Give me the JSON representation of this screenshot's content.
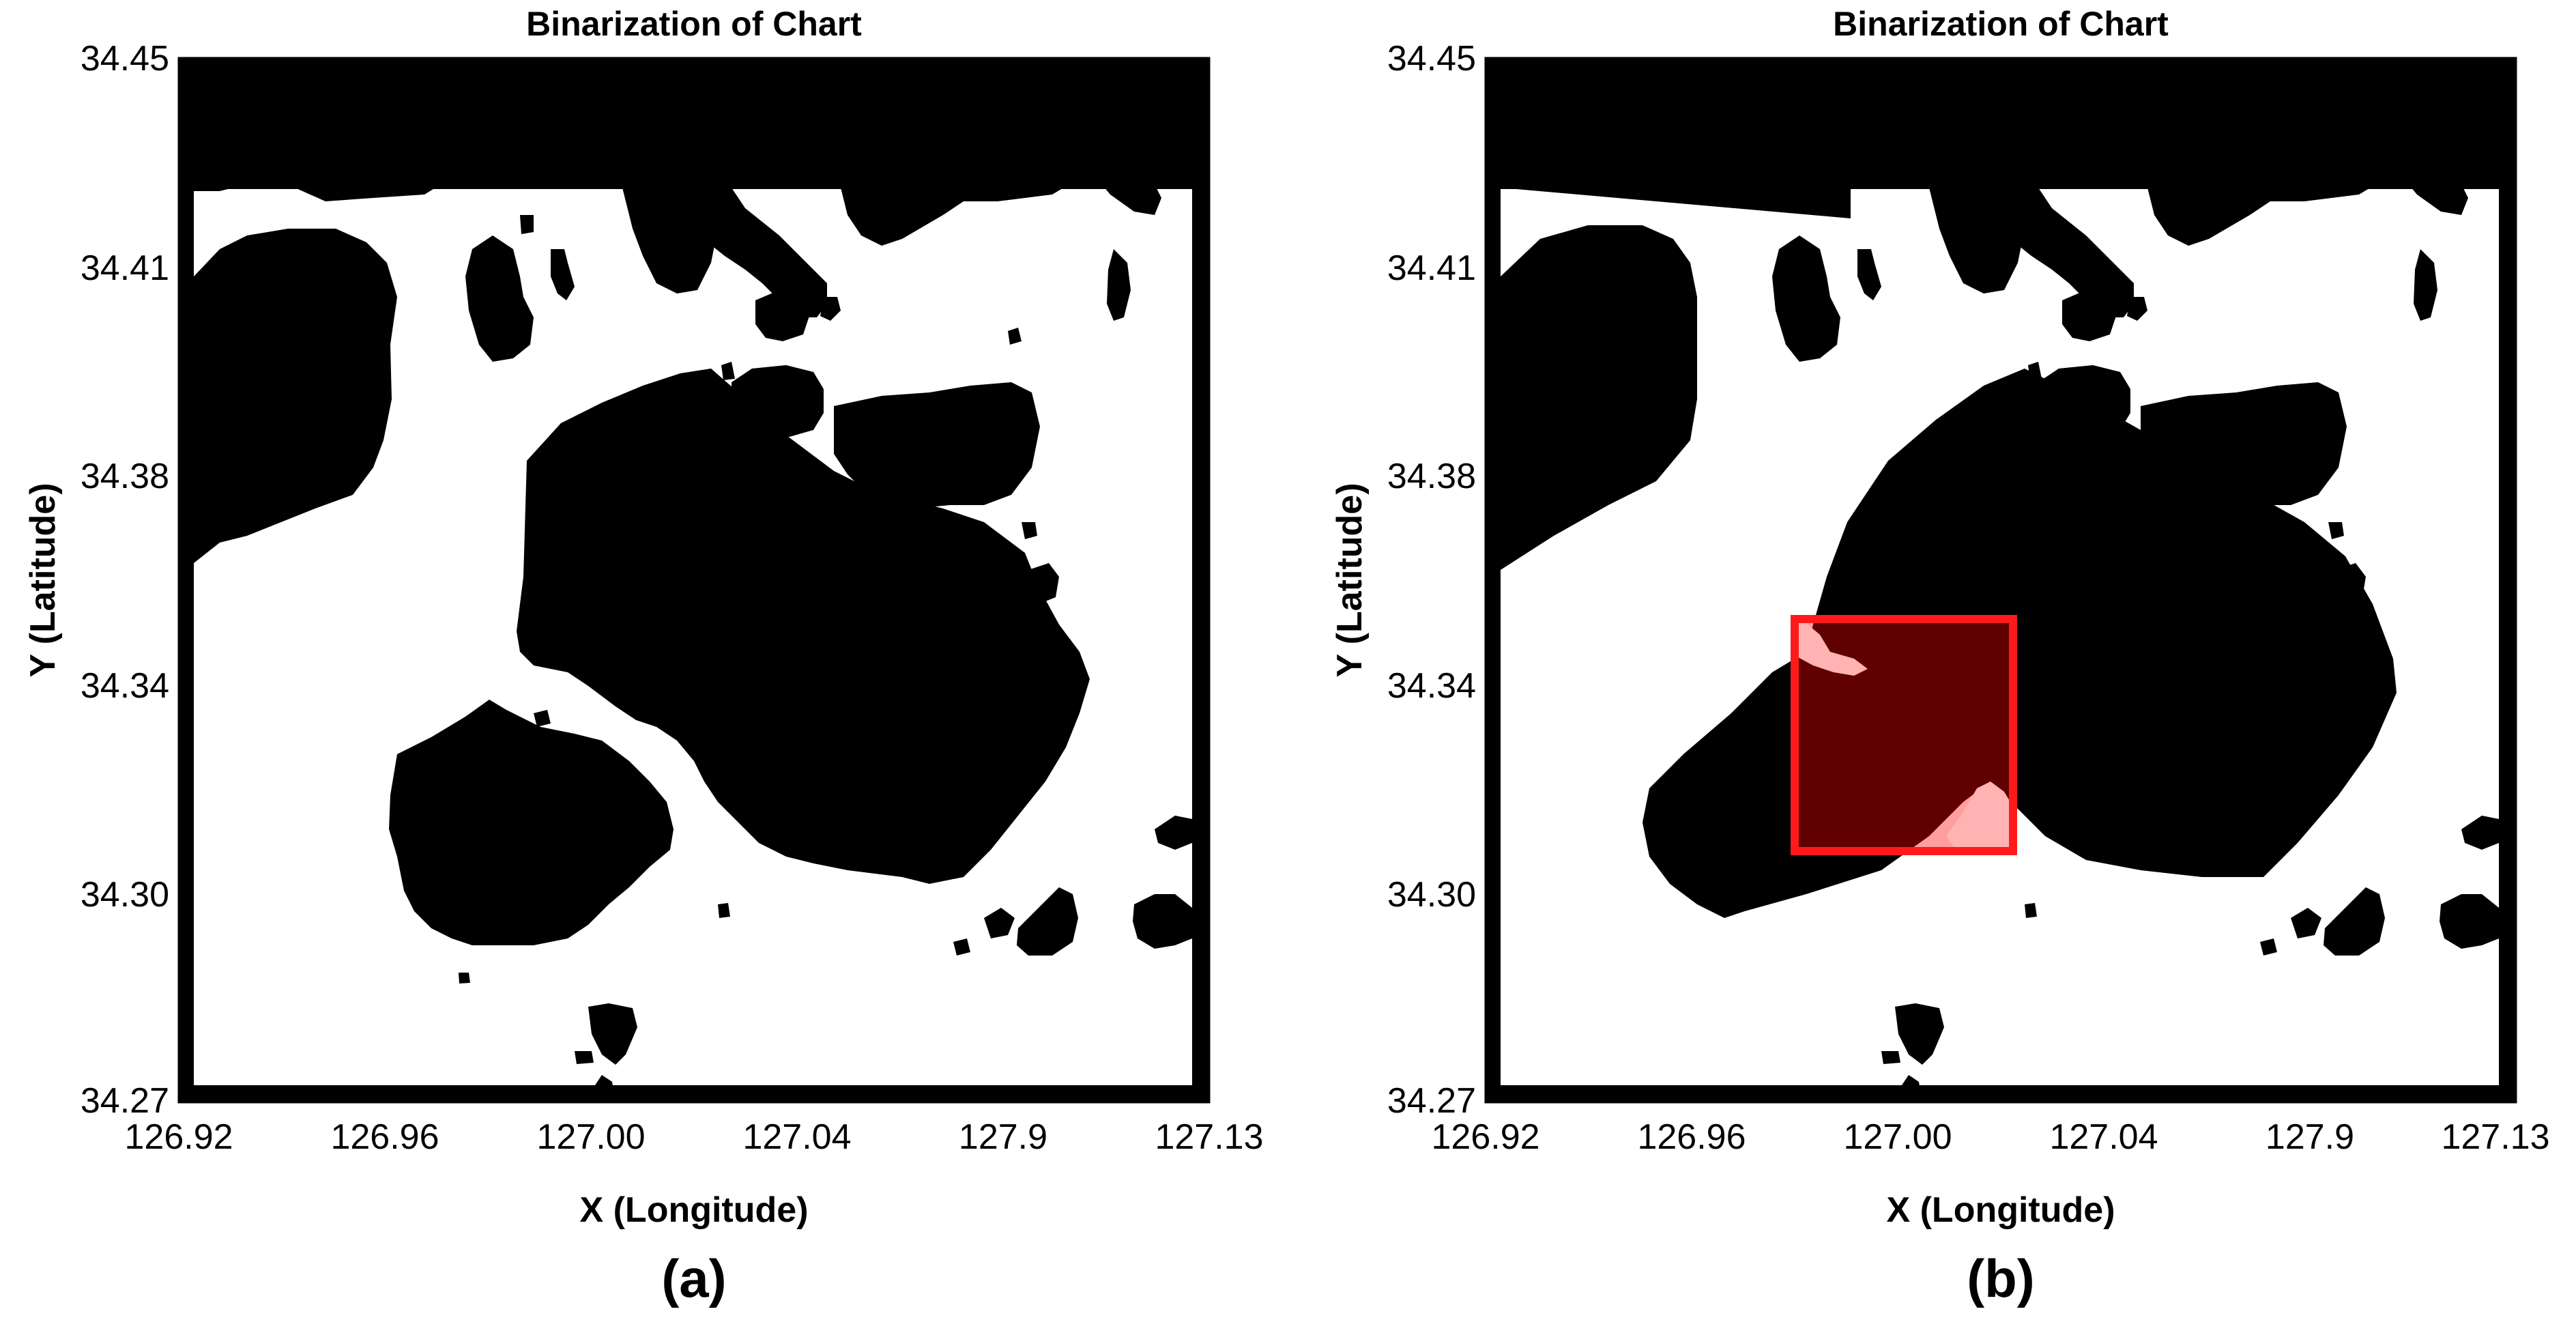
{
  "colors": {
    "land": "#000000",
    "water": "#ffffff",
    "highlight_box": "#ff1a1a",
    "highlight_fill": "#ff0000",
    "highlight_water": "#ffb3b3"
  },
  "chart_data": [
    {
      "type": "heatmap",
      "title": "Binarization of Chart",
      "panel_label": "(a)",
      "xlabel": "X (Longitude)",
      "ylabel": "Y (Latitude)",
      "xlim": [
        126.92,
        127.13
      ],
      "ylim": [
        34.27,
        34.45
      ],
      "xticks": [
        "126.92",
        "126.96",
        "127.00",
        "127.04",
        "127.9",
        "127.13"
      ],
      "yticks": [
        "34.45",
        "34.41",
        "34.38",
        "34.34",
        "34.30",
        "34.27"
      ],
      "grid": false,
      "legend": "none"
    },
    {
      "type": "heatmap",
      "title": "Binarization of Chart",
      "panel_label": "(b)",
      "xlabel": "X (Longitude)",
      "ylabel": "Y (Latitude)",
      "xlim": [
        126.92,
        127.13
      ],
      "ylim": [
        34.27,
        34.45
      ],
      "xticks": [
        "126.92",
        "126.96",
        "127.00",
        "127.04",
        "127.9",
        "127.13"
      ],
      "yticks": [
        "34.45",
        "34.41",
        "34.38",
        "34.34",
        "34.30",
        "34.27"
      ],
      "grid": false,
      "legend": "none",
      "highlight_region": {
        "x": [
          126.98,
          127.02
        ],
        "y": [
          34.31,
          34.355
        ]
      }
    }
  ]
}
